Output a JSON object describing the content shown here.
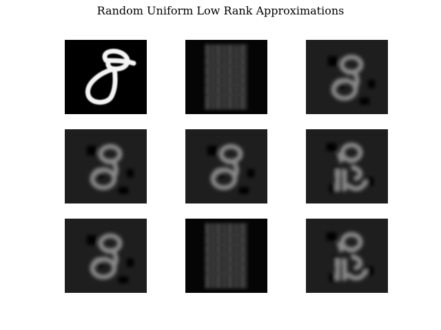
{
  "figure": {
    "title": "Random Uniform Low Rank Approximations"
  },
  "panels": [
    {
      "kind": "original-digit",
      "digit": "8"
    },
    {
      "kind": "low-rank-stripes"
    },
    {
      "kind": "low-rank-blur",
      "variant": "a"
    },
    {
      "kind": "low-rank-blur",
      "variant": "a"
    },
    {
      "kind": "low-rank-blur",
      "variant": "a"
    },
    {
      "kind": "low-rank-blur",
      "variant": "b"
    },
    {
      "kind": "low-rank-blur",
      "variant": "a"
    },
    {
      "kind": "low-rank-stripes"
    },
    {
      "kind": "low-rank-blur",
      "variant": "b"
    }
  ]
}
